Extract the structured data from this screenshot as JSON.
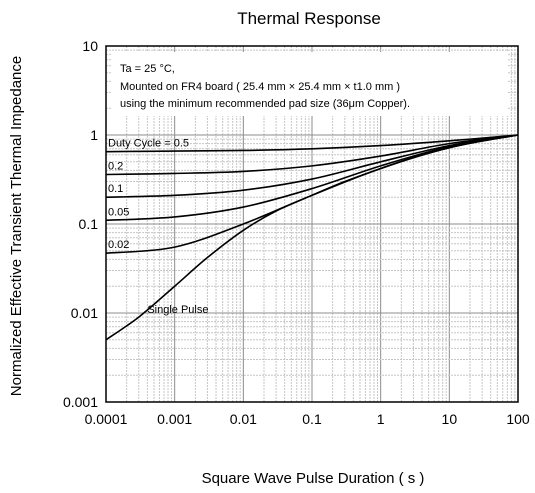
{
  "chart_data": {
    "type": "line",
    "title": "Thermal Response",
    "xlabel": "Square Wave Pulse Duration ( s )",
    "ylabel": "Normalized Effective Transient Thermal Impedance",
    "x_scale": "log",
    "y_scale": "log",
    "xlim": [
      0.0001,
      100
    ],
    "ylim": [
      0.001,
      10
    ],
    "grid": true,
    "x_ticks": [
      "0.0001",
      "0.001",
      "0.01",
      "0.1",
      "1",
      "10",
      "100"
    ],
    "y_ticks": [
      "0.001",
      "0.01",
      "0.1",
      "1",
      "10"
    ],
    "annotation": [
      "Ta = 25 °C,",
      "Mounted on FR4 board ( 25.4 mm  ×  25.4 mm  ×  t1.0 mm )",
      "using the minimum recommended pad size (36μm Copper)."
    ],
    "series": [
      {
        "name": "Duty Cycle = 0.5",
        "x": [
          0.0001,
          0.001,
          0.01,
          0.1,
          1,
          10,
          100
        ],
        "y": [
          0.65,
          0.66,
          0.67,
          0.7,
          0.76,
          0.86,
          1.0
        ]
      },
      {
        "name": "0.2",
        "x": [
          0.0001,
          0.001,
          0.01,
          0.1,
          1,
          10,
          100
        ],
        "y": [
          0.36,
          0.37,
          0.39,
          0.45,
          0.58,
          0.8,
          1.0
        ]
      },
      {
        "name": "0.1",
        "x": [
          0.0001,
          0.001,
          0.01,
          0.1,
          1,
          10,
          100
        ],
        "y": [
          0.2,
          0.21,
          0.24,
          0.32,
          0.5,
          0.76,
          1.0
        ]
      },
      {
        "name": "0.05",
        "x": [
          0.0001,
          0.001,
          0.01,
          0.1,
          1,
          10,
          100
        ],
        "y": [
          0.11,
          0.12,
          0.155,
          0.25,
          0.45,
          0.74,
          1.0
        ]
      },
      {
        "name": "0.02",
        "x": [
          0.0001,
          0.001,
          0.01,
          0.1,
          1,
          10,
          100
        ],
        "y": [
          0.047,
          0.055,
          0.1,
          0.21,
          0.42,
          0.72,
          1.0
        ]
      },
      {
        "name": "Single Pulse",
        "x": [
          0.0001,
          0.0003,
          0.001,
          0.003,
          0.01,
          0.03,
          0.1,
          0.3,
          1,
          3,
          10,
          30,
          100
        ],
        "y": [
          0.005,
          0.009,
          0.02,
          0.042,
          0.085,
          0.14,
          0.21,
          0.3,
          0.42,
          0.56,
          0.72,
          0.86,
          1.0
        ]
      }
    ]
  }
}
